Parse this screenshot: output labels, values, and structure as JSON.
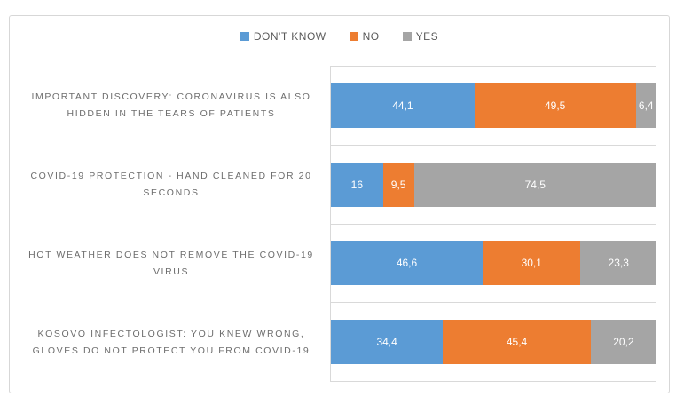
{
  "chart_data": {
    "type": "bar",
    "orientation": "horizontal-stacked",
    "title": "",
    "xlabel": "",
    "ylabel": "",
    "xlim": [
      0,
      100
    ],
    "grid": "category-boundary-lines",
    "legend_position": "top-center",
    "decimal_separator": ",",
    "categories": [
      "IMPORTANT DISCOVERY: CORONAVIRUS IS ALSO HIDDEN IN THE TEARS OF PATIENTS",
      "COVID-19 PROTECTION - HAND CLEANED FOR 20 SECONDS",
      "HOT WEATHER DOES NOT REMOVE THE COVID-19 VIRUS",
      "KOSOVO INFECTOLOGIST: YOU KNEW WRONG, GLOVES DO NOT PROTECT YOU FROM COVID-19"
    ],
    "category_lines": [
      [
        "IMPORTANT DISCOVERY: CORONAVIRUS IS ALSO",
        "HIDDEN IN THE TEARS OF PATIENTS"
      ],
      [
        "COVID-19 PROTECTION - HAND CLEANED FOR 20",
        "SECONDS"
      ],
      [
        "HOT WEATHER DOES NOT REMOVE THE COVID-19",
        "VIRUS"
      ],
      [
        "KOSOVO INFECTOLOGIST: YOU KNEW WRONG,",
        "GLOVES DO NOT PROTECT YOU FROM COVID-19"
      ]
    ],
    "series": [
      {
        "name": "DON'T KNOW",
        "color": "#5b9bd5",
        "values": [
          44.1,
          16,
          46.6,
          34.4
        ],
        "value_labels": [
          "44,1",
          "16",
          "46,6",
          "34,4"
        ]
      },
      {
        "name": "NO",
        "color": "#ed7d31",
        "values": [
          49.5,
          9.5,
          30.1,
          45.4
        ],
        "value_labels": [
          "49,5",
          "9,5",
          "30,1",
          "45,4"
        ]
      },
      {
        "name": "YES",
        "color": "#a5a5a5",
        "values": [
          6.4,
          74.5,
          23.3,
          20.2
        ],
        "value_labels": [
          "6,4",
          "74,5",
          "23,3",
          "20,2"
        ]
      }
    ]
  },
  "colors": {
    "frame_border": "#d7d7d7",
    "gridline": "#d9d9d9",
    "category_label_text": "#6d6d6d",
    "legend_text": "#595959",
    "value_label_text": "#ffffff",
    "background": "#ffffff"
  }
}
